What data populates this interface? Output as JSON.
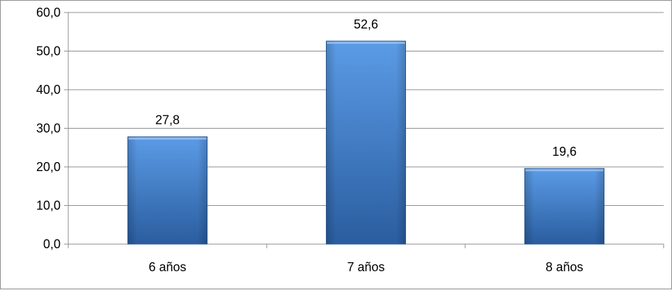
{
  "chart_data": {
    "type": "bar",
    "title": "",
    "xlabel": "",
    "ylabel": "",
    "categories": [
      "6 años",
      "7 años",
      "8 años"
    ],
    "values": [
      27.8,
      52.6,
      19.6
    ],
    "value_labels": [
      "27,8",
      "52,6",
      "19,6"
    ],
    "ylim": [
      0,
      60
    ],
    "yticks": [
      0,
      10,
      20,
      30,
      40,
      50,
      60
    ],
    "ytick_labels": [
      "0,0",
      "10,0",
      "20,0",
      "30,0",
      "40,0",
      "50,0",
      "60,0"
    ],
    "grid": true,
    "legend": "none",
    "colors": {
      "bar_top": "#5b9be6",
      "bar_bottom": "#2a5d9f",
      "bar_edge": "#2f5f9a",
      "grid": "#8c8c8c",
      "axis": "#8c8c8c"
    }
  }
}
